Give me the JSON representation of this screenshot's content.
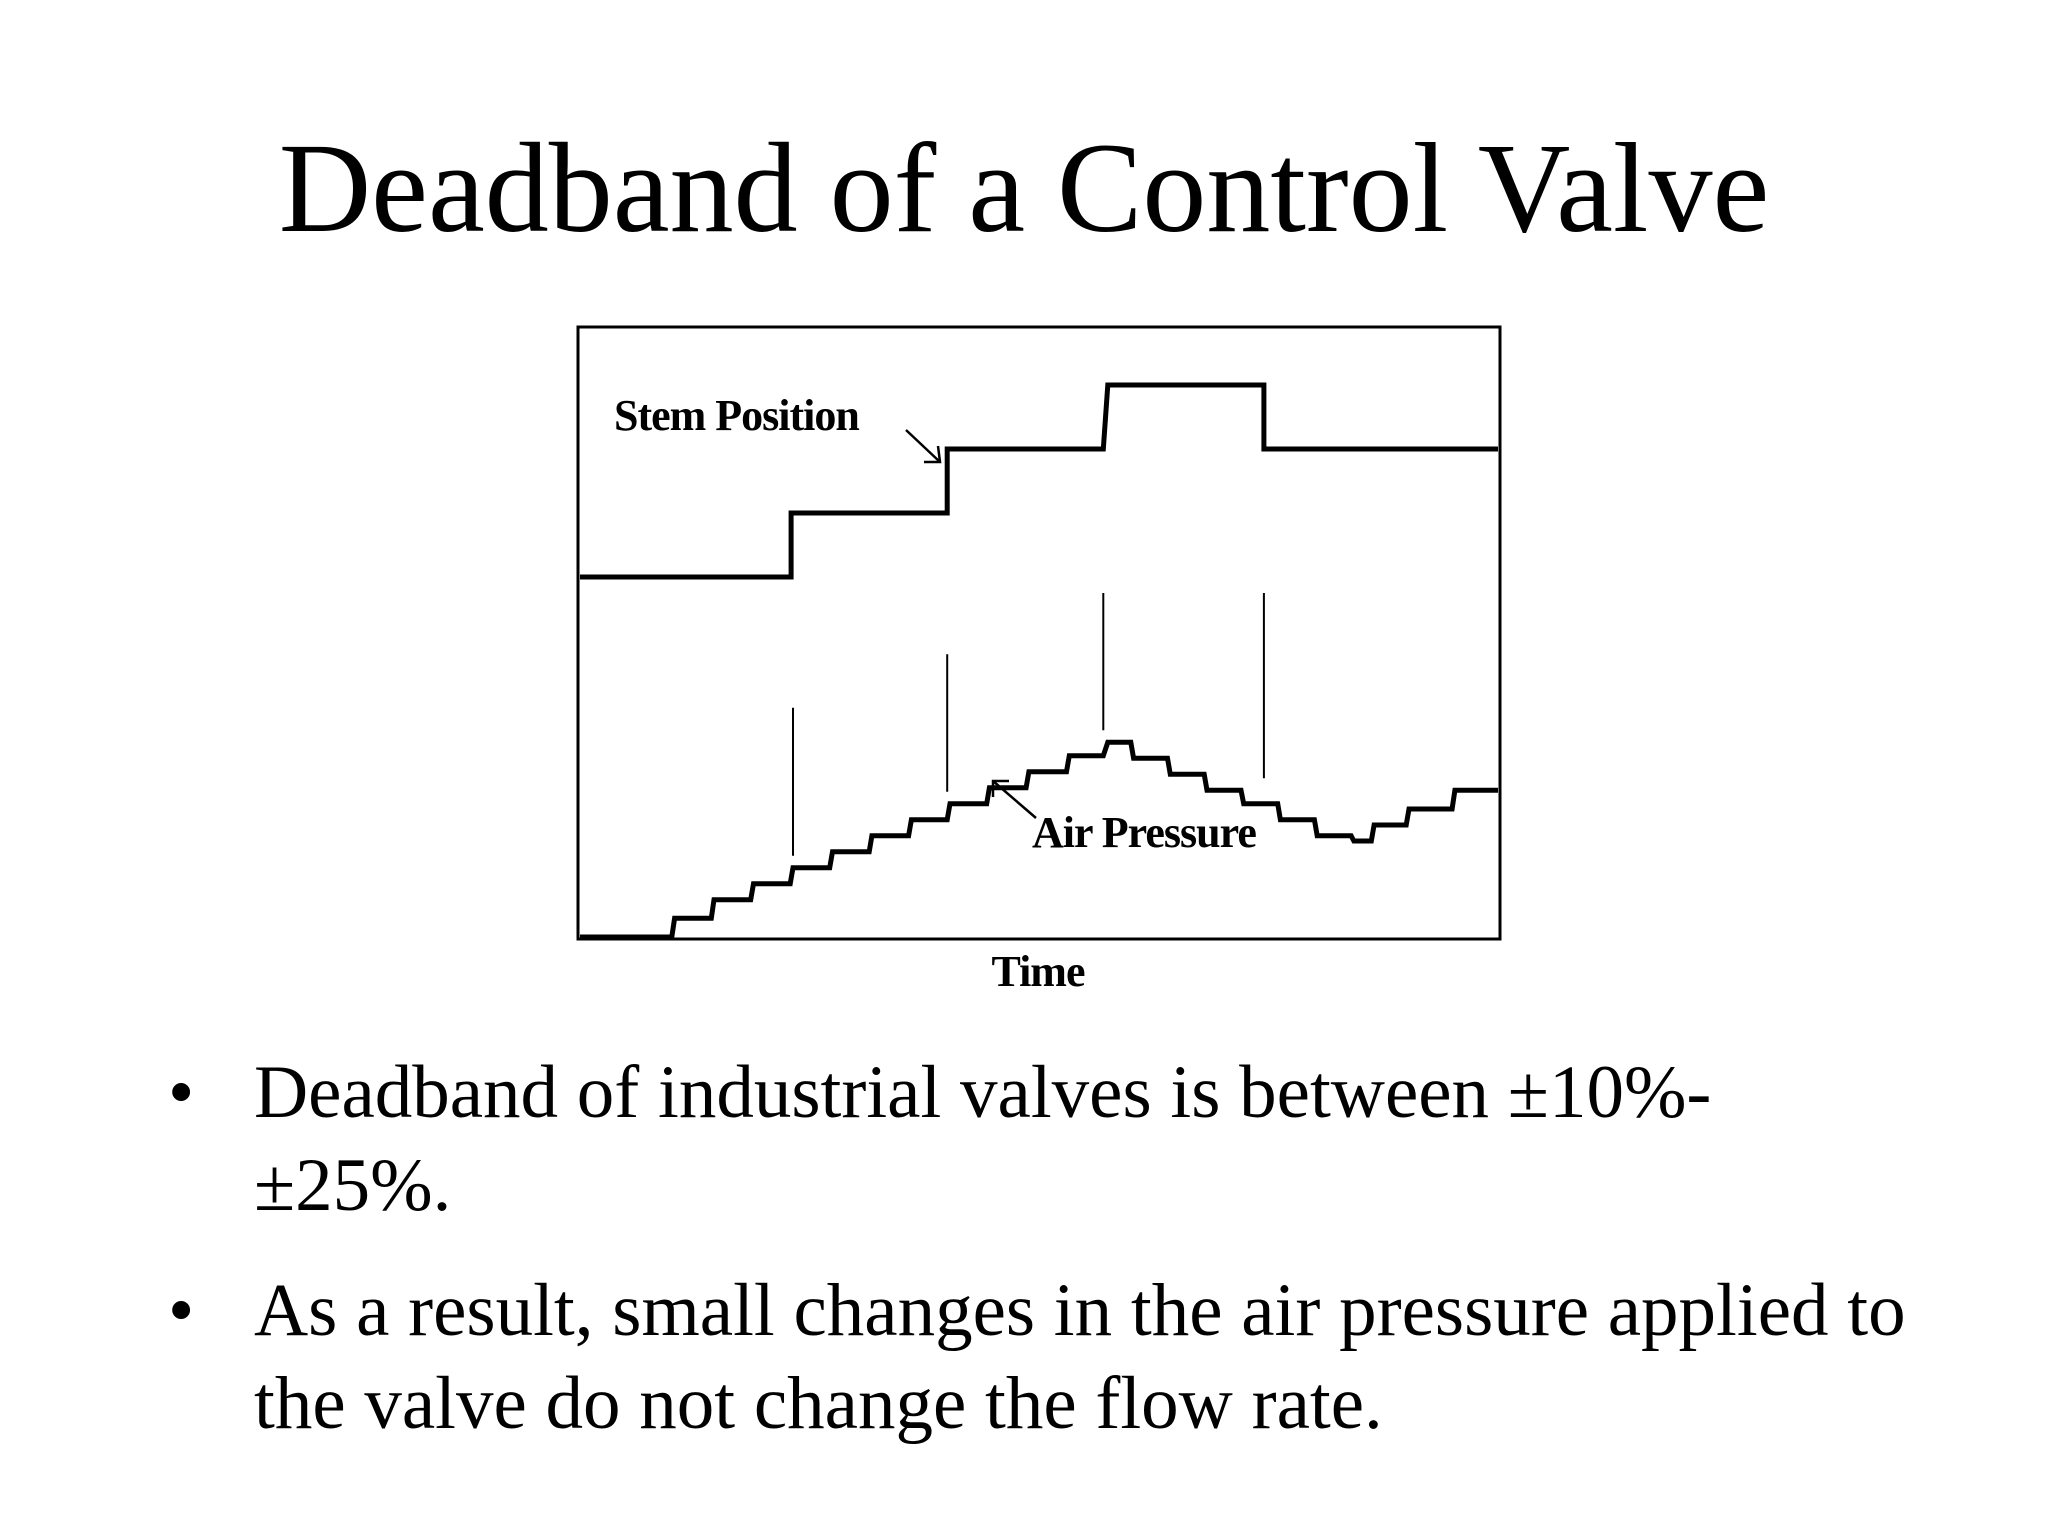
{
  "slide": {
    "title": "Deadband of a Control Valve"
  },
  "chart_data": {
    "type": "line",
    "xlabel": "Time",
    "ylabel": "",
    "annotations": [
      {
        "text": "Stem Position",
        "series": "stem"
      },
      {
        "text": "Air Pressure",
        "series": "air"
      }
    ],
    "series": [
      {
        "key": "stem",
        "name": "Stem Position",
        "points": [
          [
            0,
            6.75
          ],
          [
            0.23,
            6.75
          ],
          [
            0.23,
            7.95
          ],
          [
            0.4,
            7.95
          ],
          [
            0.4,
            9.15
          ],
          [
            0.57,
            9.15
          ],
          [
            0.575,
            10.35
          ],
          [
            0.745,
            10.35
          ],
          [
            0.745,
            9.15
          ],
          [
            1.0,
            9.15
          ]
        ]
      },
      {
        "key": "air",
        "name": "Air Pressure",
        "points": [
          [
            0,
            0
          ],
          [
            0.1,
            0
          ],
          [
            0.103,
            0.35
          ],
          [
            0.143,
            0.35
          ],
          [
            0.146,
            0.7
          ],
          [
            0.186,
            0.7
          ],
          [
            0.189,
            1.0
          ],
          [
            0.229,
            1.0
          ],
          [
            0.232,
            1.3
          ],
          [
            0.272,
            1.3
          ],
          [
            0.275,
            1.6
          ],
          [
            0.315,
            1.6
          ],
          [
            0.318,
            1.9
          ],
          [
            0.358,
            1.9
          ],
          [
            0.361,
            2.2
          ],
          [
            0.4,
            2.2
          ],
          [
            0.403,
            2.5
          ],
          [
            0.443,
            2.5
          ],
          [
            0.446,
            2.8
          ],
          [
            0.486,
            2.8
          ],
          [
            0.489,
            3.1
          ],
          [
            0.53,
            3.1
          ],
          [
            0.533,
            3.4
          ],
          [
            0.57,
            3.4
          ],
          [
            0.575,
            3.65
          ],
          [
            0.6,
            3.65
          ],
          [
            0.603,
            3.35
          ],
          [
            0.64,
            3.35
          ],
          [
            0.643,
            3.05
          ],
          [
            0.68,
            3.05
          ],
          [
            0.683,
            2.75
          ],
          [
            0.72,
            2.75
          ],
          [
            0.723,
            2.5
          ],
          [
            0.76,
            2.5
          ],
          [
            0.763,
            2.2
          ],
          [
            0.8,
            2.2
          ],
          [
            0.803,
            1.9
          ],
          [
            0.84,
            1.9
          ],
          [
            0.843,
            1.8
          ],
          [
            0.862,
            1.8
          ],
          [
            0.865,
            2.1
          ],
          [
            0.9,
            2.1
          ],
          [
            0.903,
            2.4
          ],
          [
            0.95,
            2.4
          ],
          [
            0.953,
            2.75
          ],
          [
            1.0,
            2.75
          ]
        ]
      }
    ],
    "drop_lines": [
      {
        "x": 0.232,
        "y_from": 1.3,
        "y_to": 4.3
      },
      {
        "x": 0.4,
        "y_from": 2.5,
        "y_to": 5.3
      },
      {
        "x": 0.57,
        "y_from": 3.65,
        "y_to": 6.45
      },
      {
        "x": 0.745,
        "y_from": 2.75,
        "y_to": 6.45
      }
    ],
    "xlim": [
      0,
      1
    ],
    "ylim": [
      0,
      11.4
    ],
    "grid": false,
    "legend": "none"
  },
  "bullets": [
    {
      "text": "Deadband of industrial valves is between ±10%-±25%."
    },
    {
      "text": "As a result, small changes in the air pressure applied to the valve do not change the flow rate."
    }
  ],
  "bullet_glyph": "•"
}
